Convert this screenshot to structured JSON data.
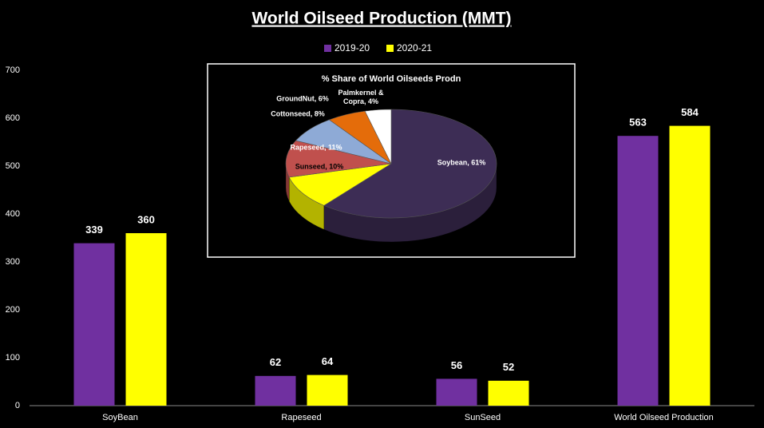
{
  "chart_data": [
    {
      "type": "bar",
      "title": "World Oilseed Production (MMT)",
      "categories": [
        "SoyBean",
        "Rapeseed",
        "SunSeed",
        "World Oilseed Production"
      ],
      "series": [
        {
          "name": "2019-20",
          "color": "#7030a0",
          "values": [
            339,
            62,
            56,
            563
          ]
        },
        {
          "name": "2020-21",
          "color": "#ffff00",
          "values": [
            360,
            64,
            52,
            584
          ]
        }
      ],
      "ylim": [
        0,
        700
      ],
      "yticks": [
        0,
        100,
        200,
        300,
        400,
        500,
        600,
        700
      ],
      "grid": false,
      "legend": "top"
    },
    {
      "type": "pie",
      "title": "% Share of World Oilseeds Prodn",
      "values": [
        61,
        10,
        11,
        8,
        6,
        4
      ],
      "value_labels": [
        "Soybean, 61%",
        "Sunseed, 10%",
        "Rapeseed, 11%",
        "Cottonseed, 8%",
        "GroundNut, 6%",
        "Palmkernel & Copra, 4%"
      ],
      "colors": [
        "#3d2d55",
        "#ffff00",
        "#c0504d",
        "#8eaad6",
        "#e46c0a",
        "#ffffff"
      ]
    }
  ]
}
